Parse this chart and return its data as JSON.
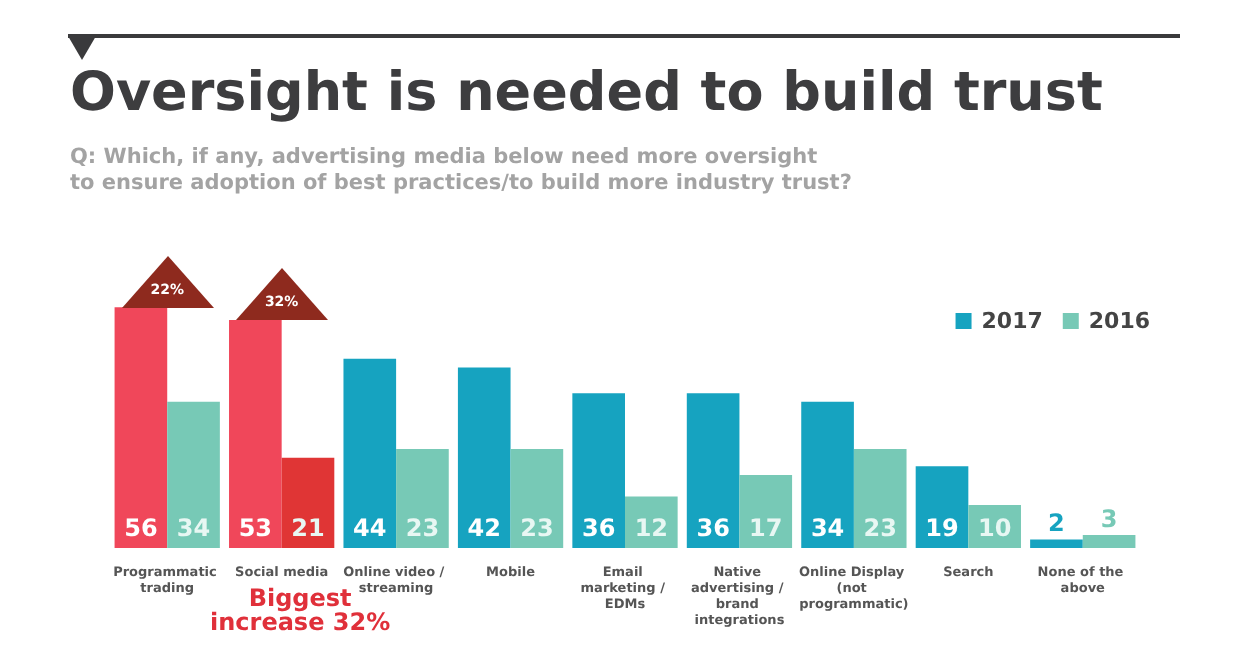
{
  "chart_data": {
    "type": "bar",
    "title": "Oversight is needed to build trust",
    "subtitle": "Q: Which, if any, advertising media below need more oversight\nto ensure adoption of best practices/to build more industry trust?",
    "categories": [
      "Programmatic trading",
      "Social media",
      "Online video / streaming",
      "Mobile",
      "Email marketing / EDMs",
      "Native advertising / brand integrations",
      "Online Display (not programmatic)",
      "Search",
      "None of the above"
    ],
    "series": [
      {
        "name": "2017",
        "color": "#16a3c0",
        "colors": [
          "#f0475a",
          "#f0475a",
          "#16a3c0",
          "#16a3c0",
          "#16a3c0",
          "#16a3c0",
          "#16a3c0",
          "#16a3c0",
          "#16a3c0"
        ],
        "values": [
          56,
          53,
          44,
          42,
          36,
          36,
          34,
          19,
          2
        ]
      },
      {
        "name": "2016",
        "color": "#77c9b6",
        "colors": [
          "#77c9b6",
          "#e03535",
          "#77c9b6",
          "#77c9b6",
          "#77c9b6",
          "#77c9b6",
          "#77c9b6",
          "#77c9b6",
          "#77c9b6"
        ],
        "values": [
          34,
          21,
          23,
          23,
          12,
          17,
          23,
          10,
          3
        ]
      }
    ],
    "annotations": [
      {
        "text": "22%",
        "x": "Programmatic trading",
        "y": 56
      },
      {
        "text": "32%",
        "x": "Social media",
        "y": 53
      },
      "Biggest\nincrease 32%"
    ],
    "data_labels": true,
    "legend": "top right"
  }
}
